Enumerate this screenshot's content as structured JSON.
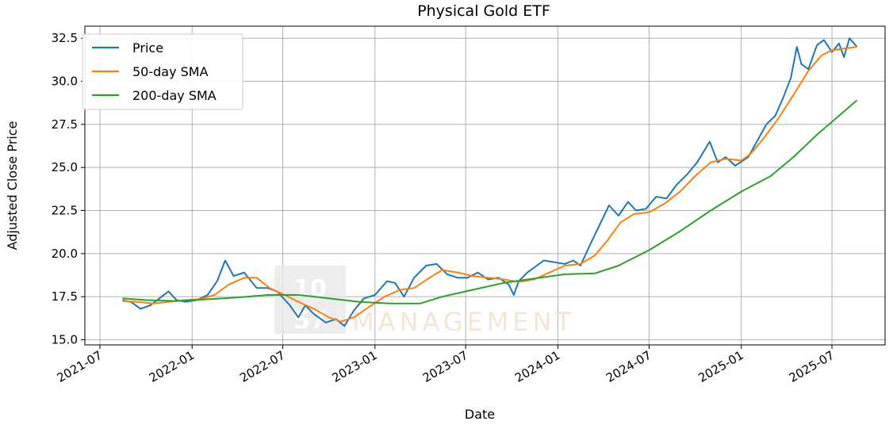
{
  "chart_data": {
    "type": "line",
    "title": "Physical Gold ETF",
    "xlabel": "Date",
    "ylabel": "Adjusted Close Price",
    "xlim": [
      "2021-06-01",
      "2025-10-15"
    ],
    "ylim": [
      14.7,
      33.2
    ],
    "x_ticks": [
      "2021-07",
      "2022-01",
      "2022-07",
      "2023-01",
      "2023-07",
      "2024-01",
      "2024-07",
      "2025-01",
      "2025-07"
    ],
    "y_ticks": [
      15.0,
      17.5,
      20.0,
      22.5,
      25.0,
      27.5,
      30.0,
      32.5
    ],
    "y_tick_labels": [
      "15.0",
      "17.5",
      "20.0",
      "22.5",
      "25.0",
      "27.5",
      "30.0",
      "32.5"
    ],
    "grid": true,
    "legend_position": "upper-left",
    "series": [
      {
        "name": "Price",
        "color": "#1f77b4",
        "points": [
          [
            "2021-08-15",
            17.3
          ],
          [
            "2021-09-01",
            17.2
          ],
          [
            "2021-09-20",
            16.8
          ],
          [
            "2021-10-10",
            17.0
          ],
          [
            "2021-11-01",
            17.5
          ],
          [
            "2021-11-15",
            17.8
          ],
          [
            "2021-12-01",
            17.3
          ],
          [
            "2021-12-20",
            17.2
          ],
          [
            "2022-01-10",
            17.3
          ],
          [
            "2022-02-01",
            17.6
          ],
          [
            "2022-02-20",
            18.4
          ],
          [
            "2022-03-08",
            19.6
          ],
          [
            "2022-03-25",
            18.7
          ],
          [
            "2022-04-15",
            18.9
          ],
          [
            "2022-05-10",
            18.0
          ],
          [
            "2022-06-01",
            18.0
          ],
          [
            "2022-06-20",
            17.8
          ],
          [
            "2022-07-15",
            17.0
          ],
          [
            "2022-08-01",
            16.3
          ],
          [
            "2022-08-15",
            17.0
          ],
          [
            "2022-09-01",
            16.5
          ],
          [
            "2022-09-25",
            16.0
          ],
          [
            "2022-10-15",
            16.2
          ],
          [
            "2022-11-01",
            15.8
          ],
          [
            "2022-11-20",
            16.7
          ],
          [
            "2022-12-10",
            17.4
          ],
          [
            "2023-01-01",
            17.6
          ],
          [
            "2023-01-25",
            18.4
          ],
          [
            "2023-02-10",
            18.3
          ],
          [
            "2023-02-28",
            17.5
          ],
          [
            "2023-03-20",
            18.6
          ],
          [
            "2023-04-13",
            19.3
          ],
          [
            "2023-05-04",
            19.4
          ],
          [
            "2023-05-25",
            18.8
          ],
          [
            "2023-06-15",
            18.6
          ],
          [
            "2023-07-05",
            18.6
          ],
          [
            "2023-07-25",
            18.9
          ],
          [
            "2023-08-15",
            18.5
          ],
          [
            "2023-09-05",
            18.6
          ],
          [
            "2023-09-25",
            18.2
          ],
          [
            "2023-10-05",
            17.6
          ],
          [
            "2023-10-15",
            18.4
          ],
          [
            "2023-11-01",
            18.9
          ],
          [
            "2023-11-20",
            19.3
          ],
          [
            "2023-12-04",
            19.6
          ],
          [
            "2023-12-25",
            19.5
          ],
          [
            "2024-01-15",
            19.4
          ],
          [
            "2024-02-01",
            19.6
          ],
          [
            "2024-02-15",
            19.3
          ],
          [
            "2024-03-05",
            20.5
          ],
          [
            "2024-03-20",
            21.4
          ],
          [
            "2024-04-12",
            22.8
          ],
          [
            "2024-05-01",
            22.2
          ],
          [
            "2024-05-20",
            23.0
          ],
          [
            "2024-06-05",
            22.5
          ],
          [
            "2024-06-25",
            22.6
          ],
          [
            "2024-07-15",
            23.3
          ],
          [
            "2024-08-05",
            23.2
          ],
          [
            "2024-08-25",
            24.0
          ],
          [
            "2024-09-15",
            24.6
          ],
          [
            "2024-10-05",
            25.3
          ],
          [
            "2024-10-30",
            26.5
          ],
          [
            "2024-11-15",
            25.3
          ],
          [
            "2024-12-01",
            25.6
          ],
          [
            "2024-12-20",
            25.1
          ],
          [
            "2025-01-15",
            25.6
          ],
          [
            "2025-02-01",
            26.5
          ],
          [
            "2025-02-20",
            27.5
          ],
          [
            "2025-03-10",
            28.0
          ],
          [
            "2025-03-25",
            29.0
          ],
          [
            "2025-04-10",
            30.2
          ],
          [
            "2025-04-22",
            32.0
          ],
          [
            "2025-05-01",
            31.0
          ],
          [
            "2025-05-15",
            30.7
          ],
          [
            "2025-06-01",
            32.1
          ],
          [
            "2025-06-15",
            32.4
          ],
          [
            "2025-07-01",
            31.7
          ],
          [
            "2025-07-15",
            32.2
          ],
          [
            "2025-07-25",
            31.4
          ],
          [
            "2025-08-05",
            32.5
          ],
          [
            "2025-08-20",
            32.0
          ]
        ]
      },
      {
        "name": "50-day SMA",
        "color": "#ff7f0e",
        "points": [
          [
            "2021-08-15",
            17.25
          ],
          [
            "2021-09-15",
            17.2
          ],
          [
            "2021-10-15",
            17.1
          ],
          [
            "2021-11-15",
            17.2
          ],
          [
            "2021-12-15",
            17.3
          ],
          [
            "2022-01-15",
            17.35
          ],
          [
            "2022-02-15",
            17.6
          ],
          [
            "2022-03-15",
            18.2
          ],
          [
            "2022-04-15",
            18.6
          ],
          [
            "2022-05-10",
            18.6
          ],
          [
            "2022-06-05",
            18.0
          ],
          [
            "2022-07-05",
            17.6
          ],
          [
            "2022-08-01",
            17.2
          ],
          [
            "2022-09-01",
            16.8
          ],
          [
            "2022-10-01",
            16.3
          ],
          [
            "2022-10-25",
            16.05
          ],
          [
            "2022-11-20",
            16.3
          ],
          [
            "2022-12-20",
            16.9
          ],
          [
            "2023-01-20",
            17.5
          ],
          [
            "2023-02-20",
            17.9
          ],
          [
            "2023-03-20",
            18.0
          ],
          [
            "2023-04-20",
            18.6
          ],
          [
            "2023-05-15",
            19.05
          ],
          [
            "2023-06-15",
            18.9
          ],
          [
            "2023-07-15",
            18.7
          ],
          [
            "2023-08-15",
            18.6
          ],
          [
            "2023-09-15",
            18.5
          ],
          [
            "2023-10-15",
            18.35
          ],
          [
            "2023-11-15",
            18.5
          ],
          [
            "2023-12-15",
            18.9
          ],
          [
            "2024-01-15",
            19.3
          ],
          [
            "2024-02-15",
            19.4
          ],
          [
            "2024-03-15",
            19.9
          ],
          [
            "2024-04-10",
            20.8
          ],
          [
            "2024-05-05",
            21.8
          ],
          [
            "2024-06-01",
            22.3
          ],
          [
            "2024-07-01",
            22.4
          ],
          [
            "2024-08-01",
            22.9
          ],
          [
            "2024-09-01",
            23.6
          ],
          [
            "2024-10-01",
            24.5
          ],
          [
            "2024-11-01",
            25.3
          ],
          [
            "2024-12-01",
            25.5
          ],
          [
            "2025-01-01",
            25.4
          ],
          [
            "2025-01-20",
            25.8
          ],
          [
            "2025-02-15",
            26.7
          ],
          [
            "2025-03-15",
            27.8
          ],
          [
            "2025-04-15",
            29.2
          ],
          [
            "2025-05-15",
            30.6
          ],
          [
            "2025-06-10",
            31.5
          ],
          [
            "2025-07-01",
            31.8
          ],
          [
            "2025-07-25",
            31.9
          ],
          [
            "2025-08-20",
            32.0
          ]
        ]
      },
      {
        "name": "200-day SMA",
        "color": "#2ca02c",
        "points": [
          [
            "2021-08-15",
            17.4
          ],
          [
            "2021-10-01",
            17.3
          ],
          [
            "2021-12-01",
            17.25
          ],
          [
            "2022-02-01",
            17.35
          ],
          [
            "2022-04-01",
            17.45
          ],
          [
            "2022-06-01",
            17.6
          ],
          [
            "2022-08-01",
            17.6
          ],
          [
            "2022-10-01",
            17.4
          ],
          [
            "2022-12-01",
            17.2
          ],
          [
            "2023-02-01",
            17.1
          ],
          [
            "2023-04-01",
            17.1
          ],
          [
            "2023-05-15",
            17.5
          ],
          [
            "2023-07-15",
            17.9
          ],
          [
            "2023-09-15",
            18.3
          ],
          [
            "2023-11-15",
            18.55
          ],
          [
            "2024-01-15",
            18.8
          ],
          [
            "2024-03-15",
            18.85
          ],
          [
            "2024-05-01",
            19.3
          ],
          [
            "2024-07-01",
            20.2
          ],
          [
            "2024-09-01",
            21.3
          ],
          [
            "2024-11-01",
            22.5
          ],
          [
            "2025-01-01",
            23.6
          ],
          [
            "2025-03-01",
            24.5
          ],
          [
            "2025-04-15",
            25.6
          ],
          [
            "2025-06-01",
            26.9
          ],
          [
            "2025-07-15",
            28.0
          ],
          [
            "2025-08-20",
            28.9
          ]
        ]
      }
    ]
  },
  "watermark": {
    "badge_top": "10",
    "badge_bottom": "57",
    "word": "MANAGEMENT"
  }
}
